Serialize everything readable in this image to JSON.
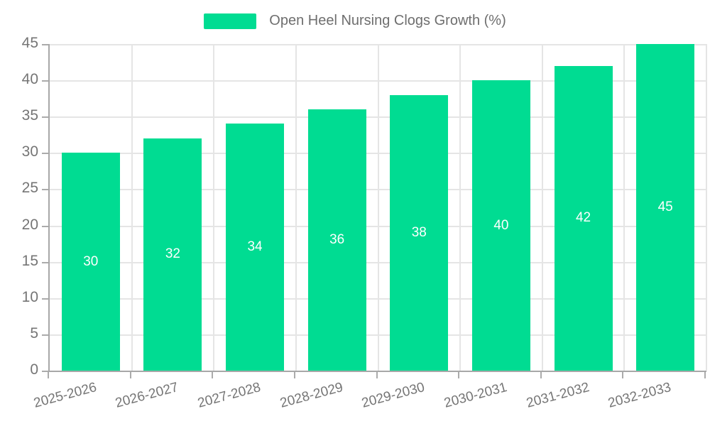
{
  "chart_data": {
    "type": "bar",
    "title": "Open Heel Nursing Clogs Growth (%)",
    "categories": [
      "2025-2026",
      "2026-2027",
      "2027-2028",
      "2028-2029",
      "2029-2030",
      "2030-2031",
      "2031-2032",
      "2032-2033"
    ],
    "series": [
      {
        "name": "Open Heel Nursing Clogs Growth (%)",
        "values": [
          30,
          32,
          34,
          36,
          38,
          40,
          42,
          45
        ]
      }
    ],
    "value_labels": [
      "30",
      "32",
      "34",
      "36",
      "38",
      "40",
      "42",
      "45"
    ],
    "xlabel": "",
    "ylabel": "",
    "ylim": [
      0,
      45
    ],
    "ytick_step": 5,
    "yticks": [
      0,
      5,
      10,
      15,
      20,
      25,
      30,
      35,
      40,
      45
    ],
    "grid": true,
    "legend_position": "top-center",
    "x_label_rotation_deg": -15,
    "colors": {
      "bar": "#00dc92",
      "grid": "#e5e5e5",
      "axis_line": "#a8a8a8",
      "tick_text": "#757575",
      "value_label_text": "#ffffff",
      "legend_text": "#6e6e6e"
    }
  }
}
